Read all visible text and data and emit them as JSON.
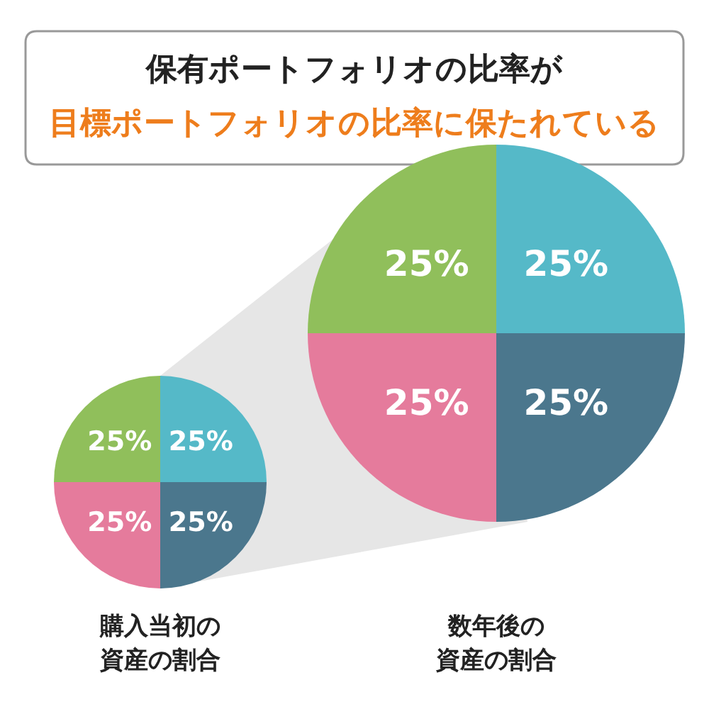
{
  "chart_data": [
    {
      "type": "pie",
      "title": "保有ポートフォリオの比率が",
      "subtitle": "目標ポートフォリオの比率に保たれている",
      "xlabel": "購入当初の資産の割合",
      "categories": [
        null,
        null,
        null,
        null
      ],
      "values": [
        25,
        25,
        25,
        25
      ],
      "value_labels": [
        "25%",
        "25%",
        "25%",
        "25%"
      ],
      "colors": [
        "#55b9c8",
        "#4b778d",
        "#e57b9c",
        "#90bf5b"
      ]
    },
    {
      "type": "pie",
      "xlabel": "数年後の資産の割合",
      "categories": [
        null,
        null,
        null,
        null
      ],
      "values": [
        25,
        25,
        25,
        25
      ],
      "value_labels": [
        "25%",
        "25%",
        "25%",
        "25%"
      ],
      "colors": [
        "#55b9c8",
        "#4b778d",
        "#e57b9c",
        "#90bf5b"
      ]
    }
  ]
}
